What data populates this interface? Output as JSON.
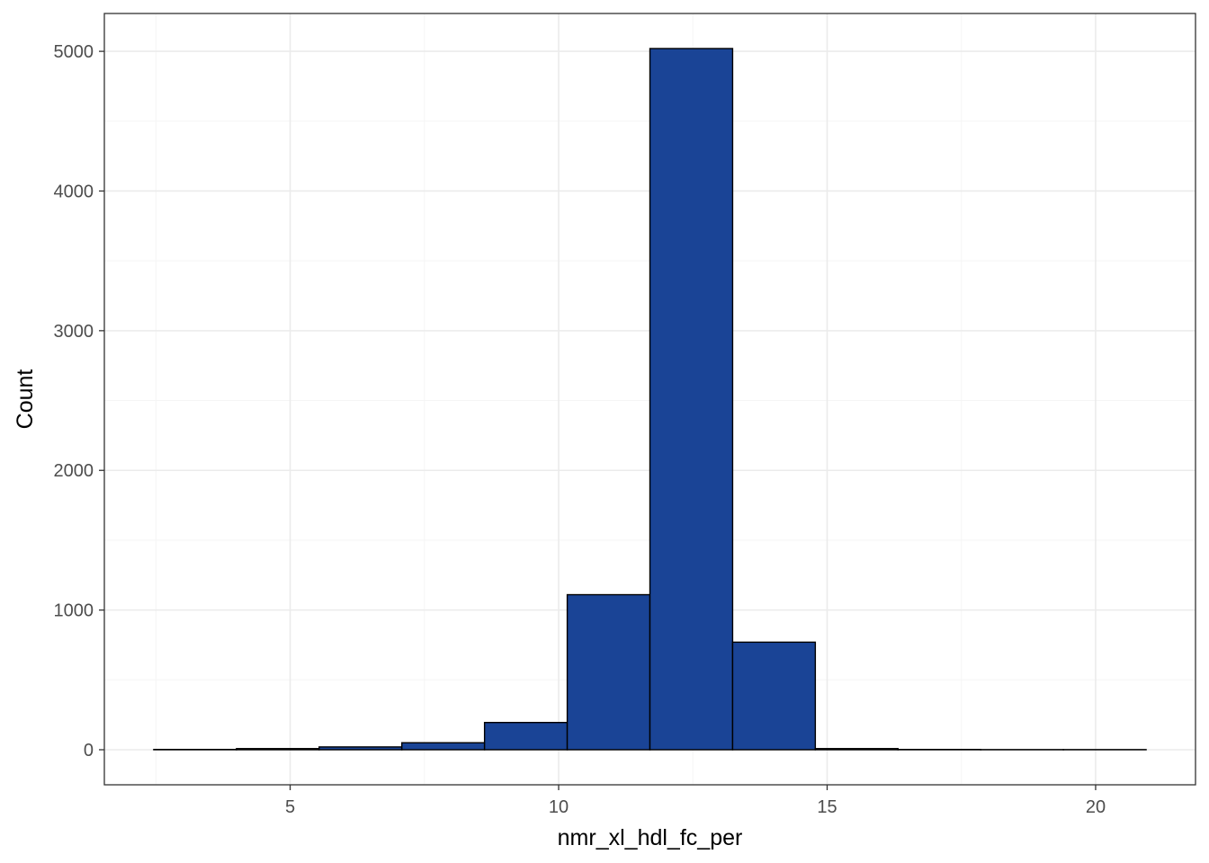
{
  "chart_data": {
    "type": "bar",
    "subtype": "histogram",
    "title": "",
    "xlabel": "nmr_xl_hdl_fc_per",
    "ylabel": "Count",
    "bin_width": 1.54,
    "bins": [
      {
        "x_start": 2.46,
        "x_end": 4.0,
        "count": 2
      },
      {
        "x_start": 4.0,
        "x_end": 5.54,
        "count": 8
      },
      {
        "x_start": 5.54,
        "x_end": 7.08,
        "count": 20
      },
      {
        "x_start": 7.08,
        "x_end": 8.62,
        "count": 50
      },
      {
        "x_start": 8.62,
        "x_end": 10.16,
        "count": 195
      },
      {
        "x_start": 10.16,
        "x_end": 11.7,
        "count": 1110
      },
      {
        "x_start": 11.7,
        "x_end": 13.24,
        "count": 5020
      },
      {
        "x_start": 13.24,
        "x_end": 14.78,
        "count": 770
      },
      {
        "x_start": 14.78,
        "x_end": 16.32,
        "count": 8
      },
      {
        "x_start": 16.32,
        "x_end": 17.86,
        "count": 2
      },
      {
        "x_start": 17.86,
        "x_end": 19.4,
        "count": 1
      },
      {
        "x_start": 19.4,
        "x_end": 20.94,
        "count": 1
      }
    ],
    "xlim": [
      1.54,
      21.86
    ],
    "ylim": [
      -251,
      5271
    ],
    "x_ticks": [
      5,
      10,
      15,
      20
    ],
    "x_tick_labels": [
      "5",
      "10",
      "15",
      "20"
    ],
    "x_minor_ticks": [
      2.5,
      7.5,
      12.5,
      17.5
    ],
    "y_ticks": [
      0,
      1000,
      2000,
      3000,
      4000,
      5000
    ],
    "y_tick_labels": [
      "0",
      "1000",
      "2000",
      "3000",
      "4000",
      "5000"
    ],
    "y_minor_ticks": [
      500,
      1500,
      2500,
      3500,
      4500
    ],
    "grid": true,
    "legend": "none",
    "colors": {
      "bar_fill": "#1a4496",
      "bar_outline": "#000000",
      "grid_major": "#ebebeb",
      "grid_minor": "#f5f5f5",
      "panel_border": "#333333",
      "tick_text": "#4d4d4d",
      "axis_title": "#000000"
    }
  }
}
